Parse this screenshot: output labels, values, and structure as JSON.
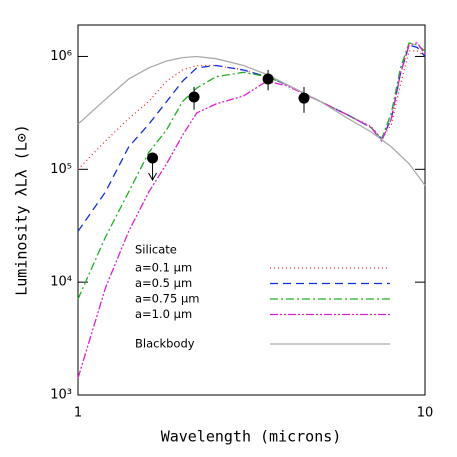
{
  "chart_data": {
    "type": "line",
    "log_x": true,
    "log_y": true,
    "xlabel": "Wavelength (microns)",
    "ylabel": "Luminosity λLλ (L⊙)",
    "xlim": [
      1,
      10
    ],
    "xticks": [
      1,
      10
    ],
    "ylim": [
      1000,
      1900000
    ],
    "yticks": [
      {
        "value": 1000,
        "label": "10³"
      },
      {
        "value": 10000,
        "label": "10⁴"
      },
      {
        "value": 100000,
        "label": "10⁵"
      },
      {
        "value": 1000000,
        "label": "10⁶"
      }
    ],
    "legend_title": "Silicate",
    "x": [
      1,
      1.2,
      1.4,
      1.6,
      1.8,
      2,
      2.2,
      2.5,
      3,
      3.5,
      4,
      5,
      6,
      7,
      7.5,
      8,
      8.5,
      9,
      9.5,
      10
    ],
    "series": [
      {
        "name": "a=0.1 μm",
        "color": "#ff2020",
        "dash": "1,3",
        "values": [
          100000,
          178000,
          282000,
          398000,
          603000,
          759000,
          832000,
          832000,
          759000,
          661000,
          562000,
          398000,
          302000,
          240000,
          186000,
          251000,
          562000,
          1120000,
          1120000,
          1000000
        ]
      },
      {
        "name": "a=0.5 μm",
        "color": "#1030e0",
        "dash": "8,5",
        "values": [
          28200,
          63100,
          158000,
          251000,
          398000,
          603000,
          794000,
          832000,
          759000,
          661000,
          562000,
          398000,
          302000,
          234000,
          186000,
          282000,
          708000,
          1260000,
          1200000,
          1000000
        ]
      },
      {
        "name": "a=0.75 μm",
        "color": "#20b020",
        "dash": "8,3,2,3",
        "values": [
          7080,
          25100,
          63100,
          141000,
          224000,
          398000,
          525000,
          661000,
          724000,
          661000,
          562000,
          398000,
          302000,
          234000,
          186000,
          316000,
          794000,
          1320000,
          1260000,
          1120000
        ]
      },
      {
        "name": "a=1.0 μm",
        "color": "#e020d0",
        "dash": "8,2,2,2,2,2",
        "values": [
          1410,
          8910,
          28200,
          63100,
          112000,
          200000,
          316000,
          380000,
          447000,
          603000,
          550000,
          398000,
          302000,
          234000,
          178000,
          282000,
          708000,
          1260000,
          1320000,
          1050000
        ]
      },
      {
        "name": "Blackbody",
        "color": "#aaaaaa",
        "dash": "",
        "x": [
          1,
          1.2,
          1.4,
          1.6,
          1.8,
          2,
          2.2,
          2.5,
          3,
          3.5,
          4,
          5,
          6,
          7,
          8,
          9,
          10
        ],
        "values": [
          251000,
          417000,
          631000,
          794000,
          912000,
          977000,
          1000000,
          955000,
          832000,
          692000,
          562000,
          398000,
          282000,
          214000,
          158000,
          112000,
          72000
        ]
      }
    ],
    "points": {
      "color": "#000000",
      "x": [
        1.64,
        2.16,
        3.53,
        4.48
      ],
      "values": [
        126000,
        437000,
        631000,
        427000
      ],
      "errors": [
        null,
        100000,
        130000,
        110000
      ],
      "upper_limit": [
        true,
        false,
        false,
        false
      ]
    }
  }
}
